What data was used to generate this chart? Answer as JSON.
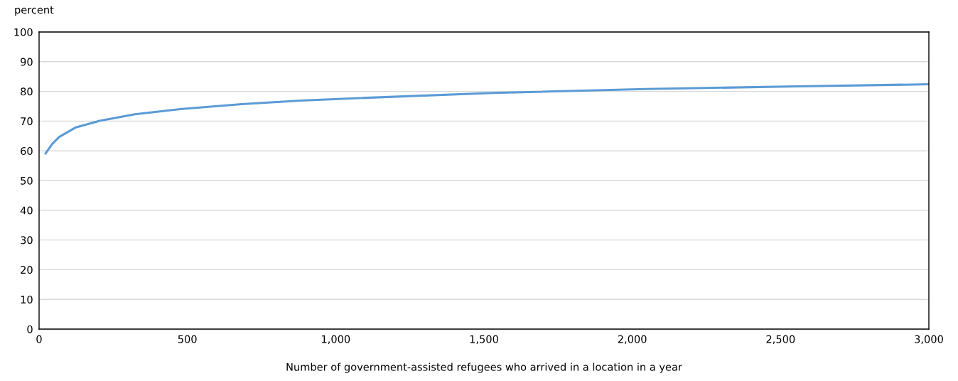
{
  "chart_data": {
    "type": "line",
    "xlabel": "Number of government-assisted refugees who arrived in a location in a year",
    "ylabel": "percent",
    "x": [
      22,
      44,
      68,
      124,
      204,
      323,
      483,
      683,
      882,
      1066,
      1531,
      2045,
      2558,
      3000
    ],
    "series": [
      {
        "color": "#5b9bd5",
        "values": [
          59.1,
          62.3,
          64.7,
          67.9,
          70.1,
          72.3,
          74.1,
          75.7,
          76.9,
          77.7,
          79.5,
          80.8,
          81.7,
          82.4
        ]
      }
    ],
    "xlim": [
      0,
      3000
    ],
    "xticks": [
      0,
      {
        "value": 500,
        "label": "500"
      },
      {
        "value": 1000,
        "label": "1,000"
      },
      {
        "value": 1500,
        "label": "1,500"
      },
      {
        "value": 2000,
        "label": "2,000"
      },
      {
        "value": 2500,
        "label": "2,500"
      },
      {
        "value": 3000,
        "label": "3,000"
      }
    ],
    "ylim": [
      0,
      100
    ],
    "yticks": [
      0,
      10,
      20,
      30,
      40,
      50,
      60,
      70,
      80,
      90,
      100
    ],
    "grid": "y",
    "marker": "none",
    "line_style": "solid"
  }
}
